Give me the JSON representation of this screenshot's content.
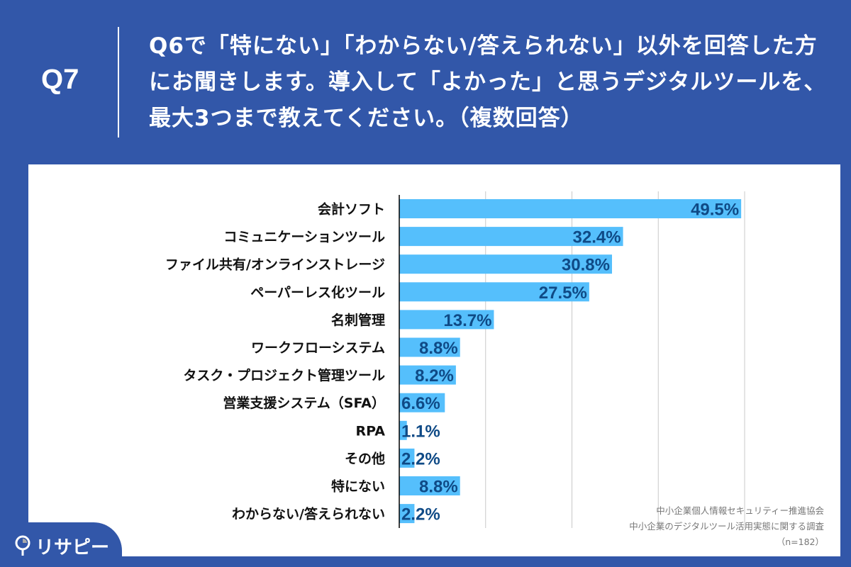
{
  "header": {
    "question_number": "Q7",
    "question_text": "Q6で「特にない」「わからない/答えられない」以外を回答した方にお聞きします。導入して「よかった」と思うデジタルツールを、最大3つまで教えてください。（複数回答）"
  },
  "chart_data": {
    "type": "bar",
    "orientation": "horizontal",
    "categories": [
      "会計ソフト",
      "コミュニケーションツール",
      "ファイル共有/オンラインストレージ",
      "ペーパーレス化ツール",
      "名刺管理",
      "ワークフローシステム",
      "タスク・プロジェクト管理ツール",
      "営業支援システム（SFA）",
      "RPA",
      "その他",
      "特にない",
      "わからない/答えられない"
    ],
    "values": [
      49.5,
      32.4,
      30.8,
      27.5,
      13.7,
      8.8,
      8.2,
      6.6,
      1.1,
      2.2,
      8.8,
      2.2
    ],
    "data_labels": [
      "49.5%",
      "32.4%",
      "30.8%",
      "27.5%",
      "13.7%",
      "8.8%",
      "8.2%",
      "6.6%",
      "1.1%",
      "2.2%",
      "8.8%",
      "2.2%"
    ],
    "xlim": [
      0,
      50
    ],
    "grid": true,
    "bar_color": "#55bffc",
    "label_color": "#0f4a86"
  },
  "source": {
    "line1": "中小企業個人情報セキュリティー推進協会",
    "line2": "中小企業のデジタルツール活用実態に関する調査",
    "sample": "（n=182）"
  },
  "logo": {
    "text": "リサピー"
  }
}
